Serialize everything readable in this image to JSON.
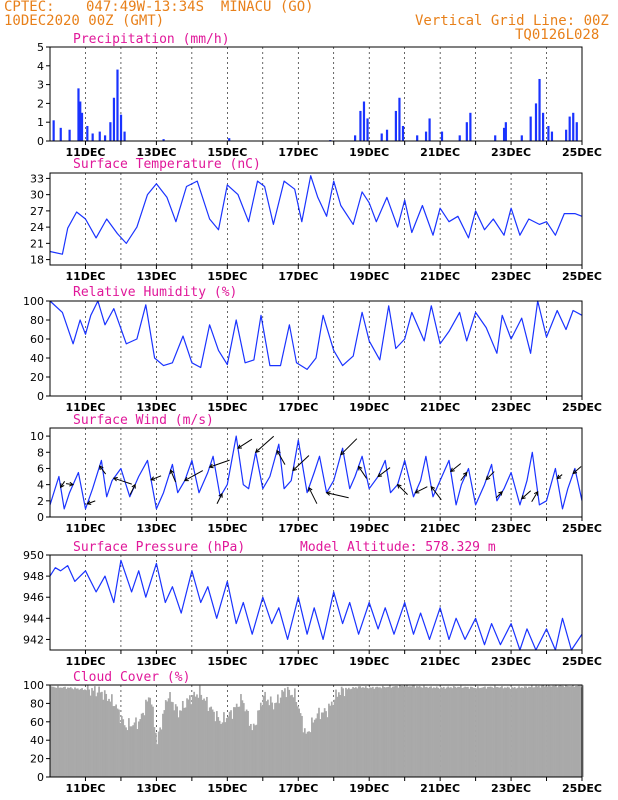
{
  "header": {
    "source": "CPTEC:",
    "location": "047:49W-13:34S  MINACU (GO)",
    "date": "10DEC2020 00Z (GMT)",
    "grid_note": "Vertical Grid Line: 00Z",
    "code": "TQ0126L028"
  },
  "colors": {
    "header": "#e8801a",
    "titles": "#e0189a",
    "series": "#1a33ff",
    "cloud": "#a9a9a9"
  },
  "chart_data": [
    {
      "type": "bar",
      "title": "Precipitation (mm/h)",
      "ylim": [
        0,
        5
      ],
      "yticks": [
        0,
        1,
        2,
        3,
        4,
        5
      ],
      "x_tick_labels": [
        "11DEC",
        "13DEC",
        "15DEC",
        "17DEC",
        "19DEC",
        "21DEC",
        "23DEC",
        "25DEC"
      ],
      "bursts": [
        {
          "day": 10.1,
          "h": 1.1
        },
        {
          "day": 10.3,
          "h": 0.7
        },
        {
          "day": 10.55,
          "h": 0.6
        },
        {
          "day": 10.8,
          "h": 2.8
        },
        {
          "day": 10.85,
          "h": 2.1
        },
        {
          "day": 10.9,
          "h": 1.5
        },
        {
          "day": 11.05,
          "h": 0.8
        },
        {
          "day": 11.2,
          "h": 0.4
        },
        {
          "day": 11.4,
          "h": 0.5
        },
        {
          "day": 11.55,
          "h": 0.3
        },
        {
          "day": 11.7,
          "h": 1.0
        },
        {
          "day": 11.8,
          "h": 2.3
        },
        {
          "day": 11.9,
          "h": 3.8
        },
        {
          "day": 12.0,
          "h": 1.4
        },
        {
          "day": 12.1,
          "h": 0.5
        },
        {
          "day": 13.2,
          "h": 0.1
        },
        {
          "day": 15.05,
          "h": 0.15
        },
        {
          "day": 17.9,
          "h": 0.05
        },
        {
          "day": 18.6,
          "h": 0.3
        },
        {
          "day": 18.75,
          "h": 1.6
        },
        {
          "day": 18.85,
          "h": 2.1
        },
        {
          "day": 18.95,
          "h": 1.2
        },
        {
          "day": 19.35,
          "h": 0.4
        },
        {
          "day": 19.5,
          "h": 0.6
        },
        {
          "day": 19.75,
          "h": 1.6
        },
        {
          "day": 19.85,
          "h": 2.3
        },
        {
          "day": 19.95,
          "h": 0.8
        },
        {
          "day": 20.35,
          "h": 0.3
        },
        {
          "day": 20.6,
          "h": 0.5
        },
        {
          "day": 20.7,
          "h": 1.2
        },
        {
          "day": 21.05,
          "h": 0.5
        },
        {
          "day": 21.55,
          "h": 0.3
        },
        {
          "day": 21.75,
          "h": 1.0
        },
        {
          "day": 21.85,
          "h": 1.5
        },
        {
          "day": 22.55,
          "h": 0.3
        },
        {
          "day": 22.8,
          "h": 0.7
        },
        {
          "day": 22.85,
          "h": 1.0
        },
        {
          "day": 23.3,
          "h": 0.3
        },
        {
          "day": 23.55,
          "h": 1.3
        },
        {
          "day": 23.7,
          "h": 2.0
        },
        {
          "day": 23.8,
          "h": 3.3
        },
        {
          "day": 23.9,
          "h": 1.5
        },
        {
          "day": 24.05,
          "h": 0.8
        },
        {
          "day": 24.15,
          "h": 0.5
        },
        {
          "day": 24.55,
          "h": 0.6
        },
        {
          "day": 24.65,
          "h": 1.3
        },
        {
          "day": 24.75,
          "h": 1.5
        },
        {
          "day": 24.85,
          "h": 1.0
        }
      ]
    },
    {
      "type": "line",
      "title": "Surface Temperature (nC)",
      "ylim": [
        17,
        34
      ],
      "yticks": [
        18,
        21,
        24,
        27,
        30,
        33
      ],
      "x_tick_labels": [
        "11DEC",
        "13DEC",
        "15DEC",
        "17DEC",
        "19DEC",
        "21DEC",
        "23DEC",
        "25DEC"
      ],
      "x": [
        10.0,
        10.35,
        10.5,
        10.75,
        11.0,
        11.3,
        11.6,
        11.9,
        12.15,
        12.45,
        12.75,
        13.0,
        13.3,
        13.55,
        13.85,
        14.15,
        14.5,
        14.75,
        15.0,
        15.3,
        15.6,
        15.85,
        16.05,
        16.3,
        16.6,
        16.9,
        17.1,
        17.35,
        17.55,
        17.8,
        18.0,
        18.2,
        18.55,
        18.8,
        19.0,
        19.2,
        19.5,
        19.8,
        20.0,
        20.2,
        20.5,
        20.8,
        21.0,
        21.25,
        21.5,
        21.8,
        22.0,
        22.25,
        22.5,
        22.8,
        23.0,
        23.25,
        23.5,
        23.8,
        24.0,
        24.25,
        24.5,
        24.8,
        25.0
      ],
      "y": [
        19.5,
        19.0,
        23.8,
        26.8,
        25.5,
        22.0,
        25.5,
        22.8,
        21.0,
        24.0,
        30.0,
        32.0,
        29.5,
        25.0,
        31.5,
        32.5,
        25.5,
        23.5,
        31.8,
        30.0,
        25.0,
        32.5,
        31.5,
        24.5,
        32.5,
        31.0,
        25.0,
        33.5,
        29.5,
        26.0,
        32.5,
        28.0,
        24.5,
        30.5,
        28.5,
        25.0,
        29.5,
        24.0,
        29.0,
        23.0,
        28.0,
        22.5,
        27.5,
        25.0,
        26.0,
        22.0,
        27.0,
        23.5,
        25.5,
        22.5,
        27.5,
        22.5,
        25.5,
        24.5,
        25.0,
        22.5,
        26.5,
        26.5,
        26.0
      ]
    },
    {
      "type": "line",
      "title": "Relative Humidity (%)",
      "ylim": [
        0,
        100
      ],
      "yticks": [
        0,
        20,
        40,
        60,
        80,
        100
      ],
      "x_tick_labels": [
        "11DEC",
        "13DEC",
        "15DEC",
        "17DEC",
        "19DEC",
        "21DEC",
        "23DEC",
        "25DEC"
      ],
      "x": [
        10.0,
        10.35,
        10.65,
        10.85,
        11.0,
        11.15,
        11.35,
        11.55,
        11.8,
        12.15,
        12.45,
        12.7,
        12.95,
        13.2,
        13.45,
        13.75,
        14.0,
        14.25,
        14.5,
        14.75,
        15.0,
        15.25,
        15.5,
        15.75,
        15.95,
        16.2,
        16.5,
        16.75,
        16.95,
        17.25,
        17.5,
        17.7,
        18.0,
        18.25,
        18.55,
        18.8,
        19.0,
        19.3,
        19.55,
        19.75,
        20.0,
        20.2,
        20.55,
        20.75,
        21.0,
        21.25,
        21.55,
        21.75,
        22.0,
        22.3,
        22.6,
        22.75,
        23.0,
        23.3,
        23.55,
        23.75,
        24.0,
        24.3,
        24.55,
        24.75,
        25.0
      ],
      "y": [
        100,
        88,
        55,
        80,
        65,
        85,
        100,
        75,
        92,
        55,
        60,
        96,
        40,
        32,
        35,
        63,
        35,
        30,
        75,
        48,
        33,
        80,
        35,
        38,
        85,
        32,
        32,
        75,
        35,
        28,
        40,
        85,
        48,
        32,
        42,
        88,
        58,
        38,
        95,
        50,
        60,
        88,
        58,
        95,
        55,
        68,
        88,
        58,
        88,
        72,
        45,
        85,
        60,
        82,
        45,
        100,
        62,
        90,
        70,
        90,
        85
      ]
    },
    {
      "type": "line",
      "title": "Surface Wind (m/s)",
      "ylim": [
        0,
        11
      ],
      "yticks": [
        0,
        2,
        4,
        6,
        8,
        10
      ],
      "x_tick_labels": [
        "11DEC",
        "13DEC",
        "15DEC",
        "17DEC",
        "19DEC",
        "21DEC",
        "23DEC",
        "25DEC"
      ],
      "x": [
        10.0,
        10.25,
        10.4,
        10.55,
        10.8,
        11.0,
        11.2,
        11.45,
        11.6,
        11.75,
        12.0,
        12.25,
        12.5,
        12.75,
        13.0,
        13.2,
        13.45,
        13.6,
        13.8,
        14.0,
        14.2,
        14.45,
        14.6,
        14.8,
        15.0,
        15.25,
        15.45,
        15.6,
        15.8,
        16.0,
        16.2,
        16.45,
        16.6,
        16.8,
        17.0,
        17.25,
        17.45,
        17.6,
        17.8,
        18.0,
        18.25,
        18.45,
        18.6,
        18.8,
        19.0,
        19.25,
        19.45,
        19.6,
        19.8,
        20.0,
        20.25,
        20.45,
        20.6,
        20.8,
        21.0,
        21.25,
        21.45,
        21.6,
        21.8,
        22.0,
        22.25,
        22.45,
        22.6,
        22.8,
        23.0,
        23.25,
        23.45,
        23.6,
        23.8,
        24.0,
        24.25,
        24.45,
        24.6,
        24.8,
        25.0
      ],
      "y": [
        1.5,
        5.0,
        1.0,
        3.0,
        5.5,
        1.0,
        3.5,
        7.0,
        2.5,
        4.5,
        6.0,
        2.5,
        5.0,
        7.0,
        1.0,
        3.0,
        6.5,
        3.0,
        4.5,
        7.0,
        3.0,
        5.5,
        7.5,
        2.5,
        4.0,
        10.0,
        4.0,
        3.5,
        8.0,
        3.5,
        5.0,
        9.0,
        3.5,
        4.5,
        9.5,
        3.0,
        5.5,
        7.5,
        3.0,
        4.5,
        8.5,
        3.5,
        5.0,
        7.5,
        3.5,
        5.0,
        7.0,
        3.0,
        4.0,
        7.0,
        2.5,
        4.5,
        7.5,
        2.5,
        4.5,
        7.0,
        1.5,
        4.0,
        6.0,
        1.5,
        4.0,
        6.5,
        2.0,
        3.5,
        5.5,
        1.5,
        4.5,
        8.0,
        1.5,
        2.0,
        6.0,
        1.0,
        3.5,
        6.0,
        2.0
      ],
      "vectors": [
        {
          "day": 10.3,
          "dx": 4,
          "dy": -6
        },
        {
          "day": 10.65,
          "dx": -7,
          "dy": -1
        },
        {
          "day": 11.05,
          "dx": 8,
          "dy": -3
        },
        {
          "day": 11.4,
          "dx": 6,
          "dy": 8
        },
        {
          "day": 11.8,
          "dx": 18,
          "dy": 6
        },
        {
          "day": 12.4,
          "dx": -5,
          "dy": 10
        },
        {
          "day": 12.85,
          "dx": 10,
          "dy": -4
        },
        {
          "day": 13.4,
          "dx": 5,
          "dy": 12
        },
        {
          "day": 13.8,
          "dx": 18,
          "dy": -10
        },
        {
          "day": 14.5,
          "dx": 20,
          "dy": -7
        },
        {
          "day": 14.85,
          "dx": -5,
          "dy": 10
        },
        {
          "day": 15.3,
          "dx": 14,
          "dy": -9
        },
        {
          "day": 15.8,
          "dx": 18,
          "dy": -16
        },
        {
          "day": 16.4,
          "dx": 8,
          "dy": 14
        },
        {
          "day": 16.85,
          "dx": 16,
          "dy": -15
        },
        {
          "day": 17.3,
          "dx": 8,
          "dy": 16
        },
        {
          "day": 17.8,
          "dx": 22,
          "dy": 5
        },
        {
          "day": 18.2,
          "dx": 16,
          "dy": -16
        },
        {
          "day": 18.7,
          "dx": 8,
          "dy": 12
        },
        {
          "day": 19.25,
          "dx": 12,
          "dy": -9
        },
        {
          "day": 19.8,
          "dx": 10,
          "dy": 10
        },
        {
          "day": 20.3,
          "dx": 12,
          "dy": -6
        },
        {
          "day": 20.75,
          "dx": 10,
          "dy": 13
        },
        {
          "day": 21.3,
          "dx": 10,
          "dy": -8
        },
        {
          "day": 21.75,
          "dx": -6,
          "dy": 8
        },
        {
          "day": 22.3,
          "dx": 8,
          "dy": -8
        },
        {
          "day": 22.75,
          "dx": -6,
          "dy": 6
        },
        {
          "day": 23.3,
          "dx": 9,
          "dy": -8
        },
        {
          "day": 23.75,
          "dx": -6,
          "dy": 10
        },
        {
          "day": 24.3,
          "dx": 5,
          "dy": -4
        },
        {
          "day": 24.75,
          "dx": 8,
          "dy": -7
        }
      ]
    },
    {
      "type": "line",
      "title": "Surface Pressure (hPa)",
      "subtitle": "Model Altitude: 578.329 m",
      "ylim": [
        941,
        950
      ],
      "yticks": [
        942,
        944,
        946,
        948,
        950
      ],
      "x_tick_labels": [
        "11DEC",
        "13DEC",
        "15DEC",
        "17DEC",
        "19DEC",
        "21DEC",
        "23DEC",
        "25DEC"
      ],
      "x": [
        10.0,
        10.15,
        10.3,
        10.5,
        10.7,
        11.0,
        11.3,
        11.55,
        11.8,
        12.0,
        12.3,
        12.5,
        12.7,
        13.0,
        13.25,
        13.45,
        13.7,
        14.0,
        14.25,
        14.45,
        14.7,
        15.0,
        15.25,
        15.45,
        15.7,
        16.0,
        16.25,
        16.45,
        16.7,
        17.0,
        17.25,
        17.45,
        17.7,
        18.0,
        18.25,
        18.45,
        18.7,
        19.0,
        19.25,
        19.45,
        19.7,
        20.0,
        20.25,
        20.45,
        20.7,
        21.0,
        21.25,
        21.45,
        21.7,
        22.0,
        22.25,
        22.45,
        22.7,
        23.0,
        23.25,
        23.45,
        23.7,
        24.0,
        24.25,
        24.45,
        24.7,
        25.0
      ],
      "y": [
        948.0,
        948.8,
        948.5,
        949.0,
        947.5,
        948.5,
        946.5,
        948.0,
        945.5,
        949.5,
        946.5,
        948.5,
        946.0,
        949.2,
        945.5,
        947.0,
        944.5,
        948.5,
        945.5,
        947.0,
        944.0,
        947.5,
        943.5,
        945.5,
        942.5,
        946.0,
        943.5,
        945.0,
        942.0,
        946.0,
        942.5,
        945.0,
        942.0,
        946.5,
        943.5,
        945.5,
        942.5,
        945.5,
        943.0,
        945.0,
        942.5,
        945.5,
        942.5,
        944.5,
        942.0,
        945.0,
        942.0,
        944.0,
        942.0,
        944.0,
        941.5,
        943.5,
        941.5,
        943.5,
        941.0,
        943.0,
        941.0,
        943.0,
        941.0,
        944.0,
        941.0,
        942.5
      ]
    },
    {
      "type": "bar",
      "title": "Cloud Cover (%)",
      "ylim": [
        0,
        100
      ],
      "yticks": [
        0,
        20,
        40,
        60,
        80,
        100
      ],
      "x_tick_labels": [
        "11DEC",
        "13DEC",
        "15DEC",
        "17DEC",
        "19DEC",
        "21DEC",
        "23DEC",
        "25DEC"
      ],
      "x": [
        10.0,
        10.5,
        11.0,
        11.4,
        11.8,
        12.1,
        12.5,
        12.8,
        13.0,
        13.3,
        13.6,
        13.9,
        14.2,
        14.5,
        14.8,
        15.1,
        15.4,
        15.7,
        16.0,
        16.3,
        16.6,
        16.9,
        17.2,
        17.5,
        17.8,
        18.1,
        18.4,
        18.7,
        19.0,
        19.5,
        20.0,
        20.5,
        21.0,
        21.5,
        22.0,
        22.5,
        23.0,
        23.5,
        24.0,
        24.5,
        25.0
      ],
      "y": [
        98,
        97,
        95,
        93,
        80,
        55,
        60,
        90,
        38,
        90,
        70,
        85,
        92,
        75,
        60,
        70,
        85,
        50,
        88,
        78,
        95,
        88,
        45,
        68,
        72,
        92,
        96,
        98,
        97,
        98,
        99,
        98,
        97,
        98,
        97,
        98,
        97,
        98,
        99,
        99,
        99
      ]
    }
  ]
}
